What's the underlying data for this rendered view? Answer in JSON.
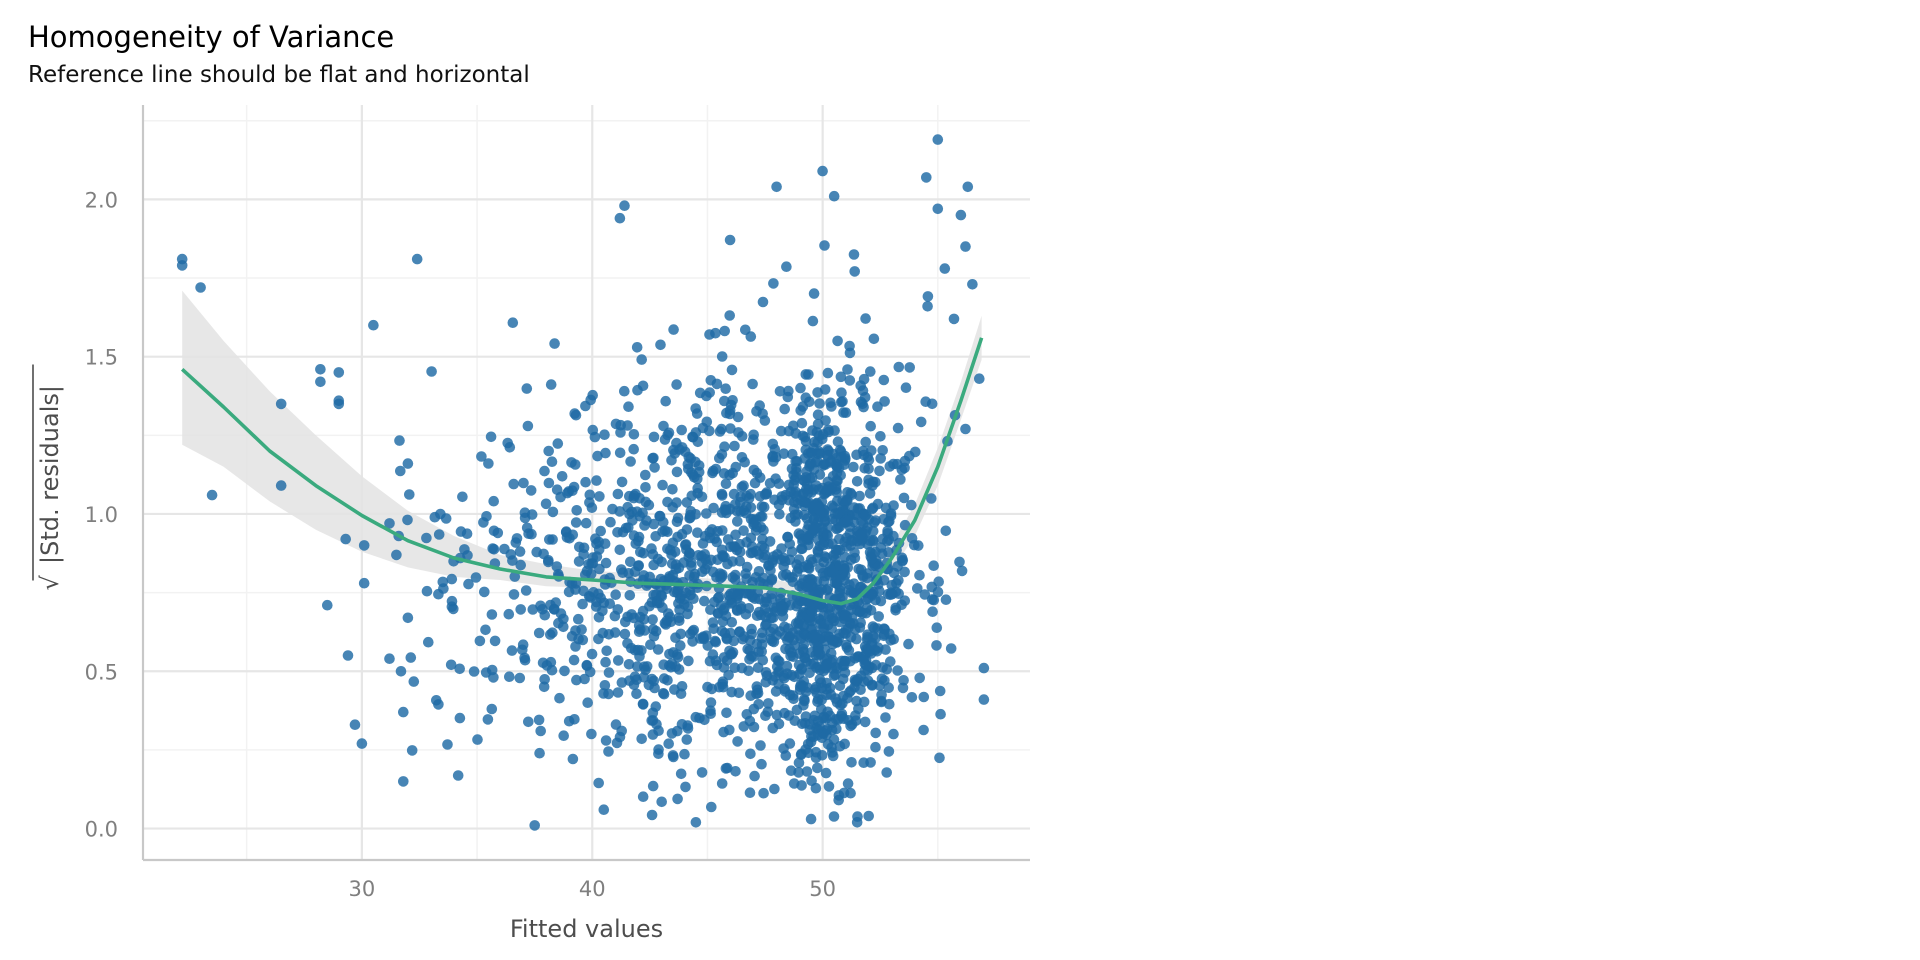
{
  "chart_data": {
    "type": "scatter",
    "title": "Homogeneity of Variance",
    "subtitle": "Reference line should be flat and horizontal",
    "xlabel": "Fitted values",
    "ylabel_root": "√",
    "ylabel_inner": "|Std. residuals|",
    "xlim": [
      20.5,
      59
    ],
    "ylim": [
      -0.1,
      2.3
    ],
    "x_ticks": [
      30,
      40,
      50
    ],
    "x_tick_labels": [
      "30",
      "40",
      "50"
    ],
    "y_ticks": [
      0.0,
      0.5,
      1.0,
      1.5,
      2.0
    ],
    "y_tick_labels": [
      "0.0",
      "0.5",
      "1.0",
      "1.5",
      "2.0"
    ],
    "grid": true,
    "colors": {
      "points": "#1f6aa5",
      "smooth": "#3aaa7e",
      "band": "#e3e3e3",
      "grid_major": "#e6e6e6",
      "grid_minor": "#f2f2f2",
      "axis": "#c8c8c8",
      "tick_text": "#7f7f7f",
      "label_text": "#4d4d4d"
    },
    "points_outliers": [
      [
        22.2,
        1.81
      ],
      [
        22.2,
        1.79
      ],
      [
        23.0,
        1.72
      ],
      [
        23.5,
        1.06
      ],
      [
        26.5,
        1.35
      ],
      [
        26.5,
        1.09
      ],
      [
        28.2,
        1.46
      ],
      [
        28.2,
        1.42
      ],
      [
        28.5,
        0.71
      ],
      [
        29.0,
        1.45
      ],
      [
        29.0,
        1.36
      ],
      [
        29.0,
        1.35
      ],
      [
        29.3,
        0.92
      ],
      [
        29.4,
        0.55
      ],
      [
        29.7,
        0.33
      ],
      [
        30.0,
        0.27
      ],
      [
        30.1,
        0.9
      ],
      [
        30.1,
        0.78
      ],
      [
        30.5,
        1.6
      ],
      [
        31.2,
        0.97
      ],
      [
        31.2,
        0.54
      ],
      [
        31.5,
        0.87
      ],
      [
        31.6,
        0.93
      ],
      [
        31.7,
        0.5
      ],
      [
        31.8,
        0.37
      ],
      [
        31.8,
        0.15
      ],
      [
        32.0,
        0.67
      ],
      [
        32.0,
        1.16
      ],
      [
        32.4,
        1.81
      ],
      [
        55.0,
        2.19
      ],
      [
        54.5,
        2.07
      ],
      [
        55.0,
        1.97
      ],
      [
        56.3,
        2.04
      ],
      [
        50.0,
        2.09
      ],
      [
        50.5,
        2.01
      ],
      [
        48.0,
        2.04
      ],
      [
        57.0,
        0.51
      ],
      [
        57.0,
        0.41
      ],
      [
        56.2,
        1.27
      ],
      [
        56.8,
        1.43
      ],
      [
        56.5,
        1.73
      ],
      [
        56.2,
        1.85
      ],
      [
        56.0,
        1.95
      ],
      [
        55.3,
        1.78
      ],
      [
        55.7,
        1.62
      ],
      [
        41.4,
        1.98
      ],
      [
        41.2,
        1.94
      ],
      [
        45.3,
        0.72
      ],
      [
        52.0,
        0.04
      ],
      [
        51.5,
        0.02
      ],
      [
        49.5,
        0.03
      ],
      [
        44.5,
        0.02
      ],
      [
        37.5,
        0.01
      ],
      [
        40.5,
        0.06
      ]
    ],
    "points_cloud": {
      "count": 1900,
      "seed": 7,
      "x_mode": 49,
      "x_spread_left": 7.5,
      "x_spread_right": 4.6,
      "x_min": 31.5,
      "x_max": 56.2,
      "y_center": 0.8,
      "y_sd": 0.32,
      "y_min": 0.02,
      "y_max": 2.0
    },
    "smooth_line": {
      "x": [
        22.2,
        24,
        26,
        28,
        30,
        32,
        34,
        36,
        38,
        40,
        42,
        44,
        46,
        47.5,
        49,
        50,
        50.8,
        51.5,
        52.2,
        53,
        54,
        55,
        56,
        56.9
      ],
      "y": [
        1.46,
        1.34,
        1.2,
        1.09,
        0.995,
        0.915,
        0.86,
        0.825,
        0.8,
        0.79,
        0.78,
        0.775,
        0.77,
        0.765,
        0.745,
        0.725,
        0.715,
        0.73,
        0.78,
        0.86,
        0.98,
        1.15,
        1.36,
        1.56
      ]
    },
    "confidence_band": {
      "x": [
        22.2,
        24,
        26,
        28,
        30,
        32,
        34,
        36,
        38,
        40,
        42,
        44,
        46,
        48,
        50,
        51,
        52,
        53,
        54,
        55,
        56,
        56.9
      ],
      "upper": [
        1.71,
        1.55,
        1.39,
        1.25,
        1.12,
        1.01,
        0.93,
        0.87,
        0.84,
        0.82,
        0.81,
        0.8,
        0.79,
        0.79,
        0.76,
        0.75,
        0.81,
        0.9,
        1.03,
        1.21,
        1.42,
        1.63
      ],
      "lower": [
        1.22,
        1.15,
        1.04,
        0.95,
        0.88,
        0.83,
        0.8,
        0.79,
        0.77,
        0.765,
        0.755,
        0.75,
        0.745,
        0.73,
        0.69,
        0.68,
        0.75,
        0.82,
        0.93,
        1.09,
        1.3,
        1.49
      ]
    }
  }
}
